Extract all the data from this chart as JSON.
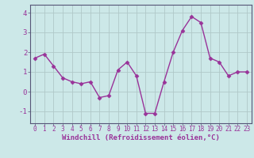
{
  "x": [
    0,
    1,
    2,
    3,
    4,
    5,
    6,
    7,
    8,
    9,
    10,
    11,
    12,
    13,
    14,
    15,
    16,
    17,
    18,
    19,
    20,
    21,
    22,
    23
  ],
  "y": [
    1.7,
    1.9,
    1.3,
    0.7,
    0.5,
    0.4,
    0.5,
    -0.3,
    -0.2,
    1.1,
    1.5,
    0.8,
    -1.1,
    -1.1,
    0.5,
    2.0,
    3.1,
    3.8,
    3.5,
    1.7,
    1.5,
    0.8,
    1.0,
    1.0
  ],
  "line_color": "#993399",
  "marker": "D",
  "marker_size": 2.5,
  "linewidth": 1.0,
  "bg_color": "#cce8e8",
  "grid_color": "#b0c8c8",
  "axis_color": "#555577",
  "xlabel": "Windchill (Refroidissement éolien,°C)",
  "xlabel_color": "#993399",
  "tick_color": "#993399",
  "xlim": [
    -0.5,
    23.5
  ],
  "ylim": [
    -1.6,
    4.4
  ],
  "yticks": [
    -1,
    0,
    1,
    2,
    3,
    4
  ],
  "xticks": [
    0,
    1,
    2,
    3,
    4,
    5,
    6,
    7,
    8,
    9,
    10,
    11,
    12,
    13,
    14,
    15,
    16,
    17,
    18,
    19,
    20,
    21,
    22,
    23
  ],
  "tick_fontsize": 5.5,
  "ytick_fontsize": 6.5,
  "xlabel_fontsize": 6.5
}
